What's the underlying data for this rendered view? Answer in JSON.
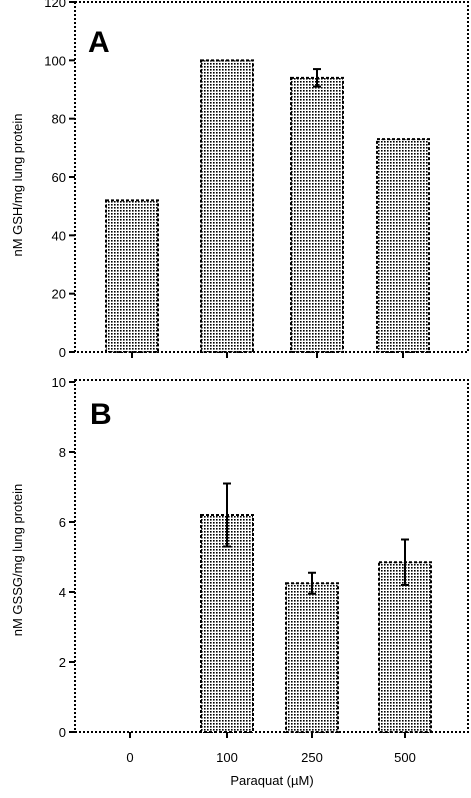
{
  "chart_data": [
    {
      "panel": "A",
      "type": "bar",
      "categories": [
        "0",
        "100",
        "250",
        "500"
      ],
      "values": [
        52,
        100,
        94,
        73
      ],
      "errors": [
        0,
        0,
        3,
        0
      ],
      "ylabel": "nM GSH/mg lung protein",
      "ylim": [
        0,
        120
      ],
      "yticks": [
        "0",
        "20",
        "40",
        "60",
        "80",
        "100",
        "120"
      ],
      "ytick_values": [
        0,
        20,
        40,
        60,
        80,
        100,
        120
      ],
      "grid": false
    },
    {
      "panel": "B",
      "type": "bar",
      "categories": [
        "0",
        "100",
        "250",
        "500"
      ],
      "values": [
        0,
        6.2,
        4.25,
        4.85
      ],
      "errors": [
        0,
        0.9,
        0.3,
        0.65
      ],
      "ylabel": "nM GSSG/mg lung protein",
      "xlabel": "Paraquat (µM)",
      "ylim": [
        0,
        10
      ],
      "yticks": [
        "0",
        "2",
        "4",
        "6",
        "8",
        "10"
      ],
      "ytick_values": [
        0,
        2,
        4,
        6,
        8,
        10
      ],
      "grid": false
    }
  ]
}
